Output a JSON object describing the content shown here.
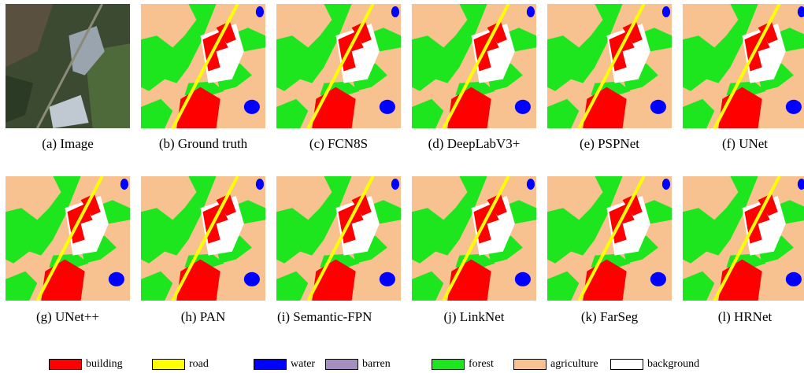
{
  "panels": [
    {
      "label": "(a) Image"
    },
    {
      "label": "(b) Ground truth"
    },
    {
      "label": "(c) FCN8S"
    },
    {
      "label": "(d) DeepLabV3+"
    },
    {
      "label": "(e) PSPNet"
    },
    {
      "label": "(f) UNet"
    },
    {
      "label": "(g) UNet++"
    },
    {
      "label": "(h) PAN"
    },
    {
      "label": "(i) Semantic-FPN"
    },
    {
      "label": "(j) LinkNet"
    },
    {
      "label": "(k) FarSeg"
    },
    {
      "label": "(l) HRNet"
    }
  ],
  "legend": [
    {
      "name": "building",
      "color": "#ff0000"
    },
    {
      "name": "road",
      "color": "#ffff00"
    },
    {
      "name": "water",
      "color": "#0000ff"
    },
    {
      "name": "barren",
      "color": "#a58fc2"
    },
    {
      "name": "forest",
      "color": "#1ee61e"
    },
    {
      "name": "agriculture",
      "color": "#f8c290"
    },
    {
      "name": "background",
      "color": "#ffffff"
    }
  ]
}
